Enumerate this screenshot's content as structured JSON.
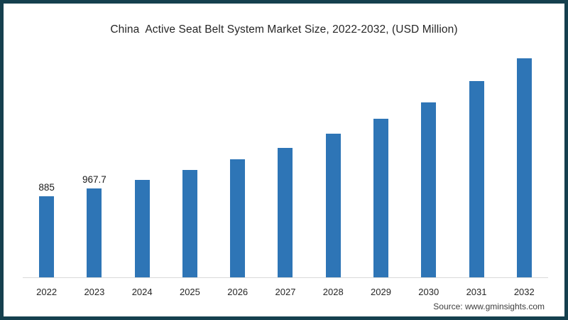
{
  "title": "China  Active Seat Belt System Market Size, 2022-2032, (USD Million)",
  "source": "Source: www.gminsights.com",
  "colors": {
    "frame_border": "#15404e",
    "bar": "#2e75b6",
    "axis_line": "#d9d9d9",
    "title_text": "#262626",
    "background": "#ffffff"
  },
  "chart_data": {
    "type": "bar",
    "title": "China  Active Seat Belt System Market Size, 2022-2032, (USD Million)",
    "categories": [
      "2022",
      "2023",
      "2024",
      "2025",
      "2026",
      "2027",
      "2028",
      "2029",
      "2030",
      "2031",
      "2032"
    ],
    "values": [
      885,
      967.7,
      1060,
      1165,
      1285,
      1405,
      1565,
      1725,
      1905,
      2130,
      2380
    ],
    "data_labels": [
      "885",
      "967.7",
      "",
      "",
      "",
      "",
      "",
      "",
      "",
      "",
      ""
    ],
    "xlabel": "",
    "ylabel": "",
    "ylim": [
      0,
      2550
    ],
    "grid": false,
    "legend": false,
    "bar_color": "#2e75b6",
    "note": "values for 2024-2032 estimated from bar heights; only 2022 and 2023 carry printed data labels"
  }
}
